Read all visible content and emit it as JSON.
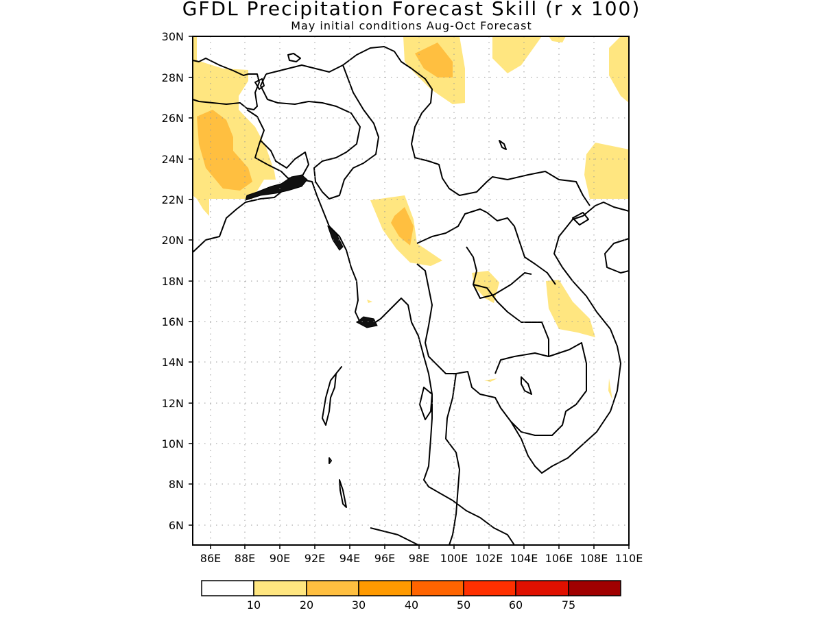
{
  "title": "GFDL Precipitation Forecast Skill (r x 100)",
  "subtitle": "May initial conditions  Aug-Oct Forecast",
  "map": {
    "lon_range": [
      85,
      110
    ],
    "lat_range": [
      5,
      30
    ],
    "lat_ticks": [
      "30N",
      "28N",
      "26N",
      "24N",
      "22N",
      "20N",
      "18N",
      "16N",
      "14N",
      "12N",
      "10N",
      "8N",
      "6N"
    ],
    "lon_ticks": [
      "86E",
      "88E",
      "90E",
      "92E",
      "94E",
      "96E",
      "98E",
      "100E",
      "102E",
      "104E",
      "106E",
      "108E",
      "110E"
    ],
    "grid": "dotted"
  },
  "colorbar": {
    "boundaries": [
      "10",
      "20",
      "30",
      "40",
      "50",
      "60",
      "75"
    ],
    "colors": [
      "#ffffff",
      "#ffe680",
      "#ffbf40",
      "#ff9a00",
      "#ff6400",
      "#ff3000",
      "#e01000",
      "#a00000"
    ]
  }
}
